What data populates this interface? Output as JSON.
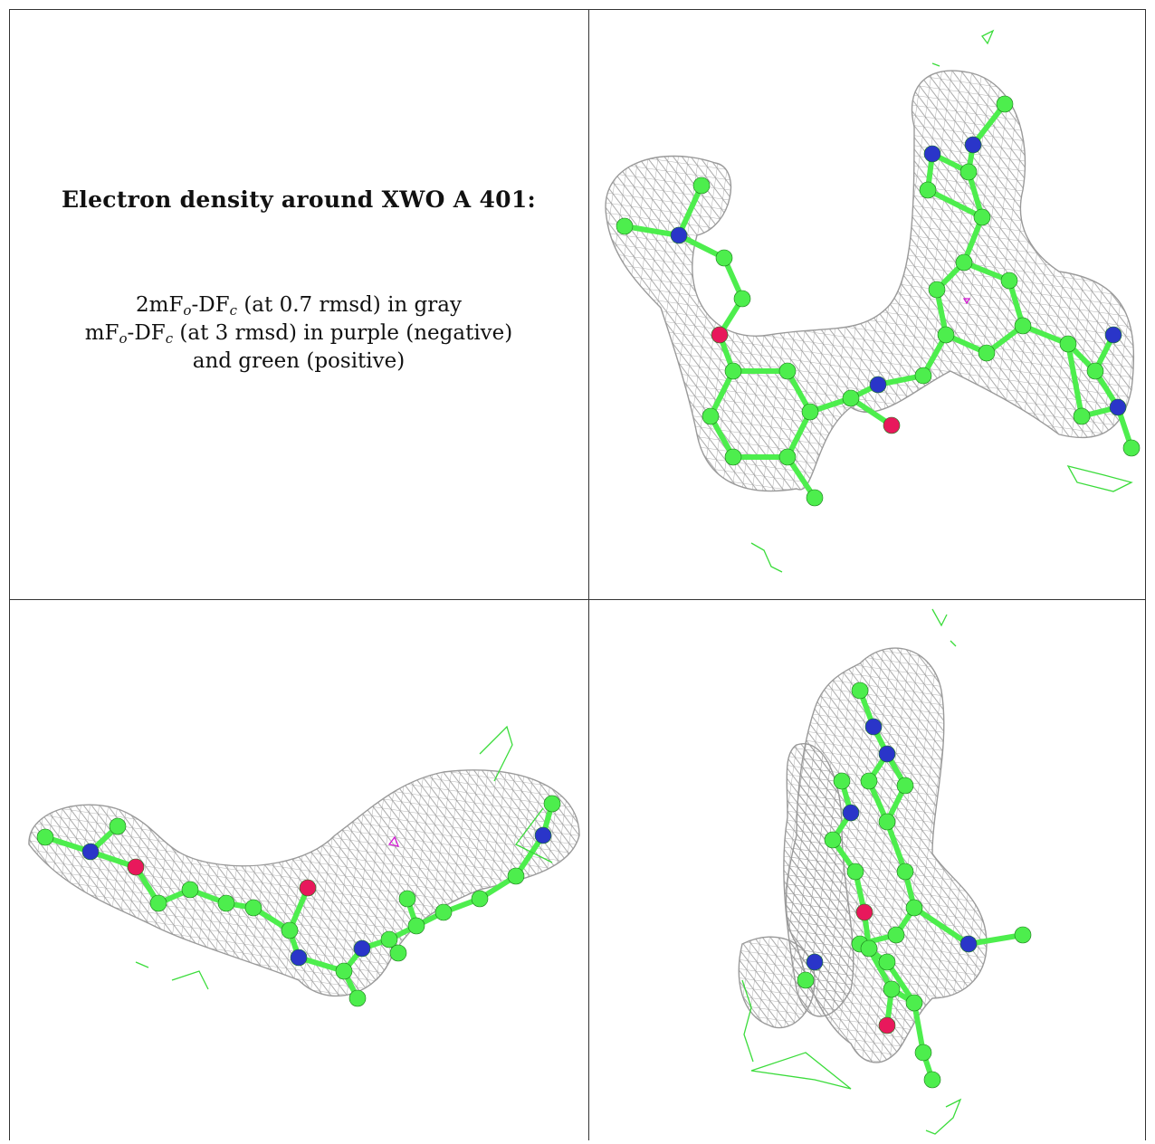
{
  "caption": {
    "title": "Electron density around XWO A 401:",
    "line1": {
      "a": "2mF",
      "a_sub": "o",
      "b": "-DF",
      "b_sub": "c",
      "rest": " (at 0.7 rmsd) in gray"
    },
    "line2": {
      "a": "mF",
      "a_sub": "o",
      "b": "-DF",
      "b_sub": "c",
      "rest": " (at 3 rmsd) in purple (negative)"
    },
    "line3": {
      "rest": "and green (positive)"
    }
  },
  "colors": {
    "mesh_gray": "#9a9a9a",
    "carbon_green": "#4dee4d",
    "nitrogen_blue": "#2a35c9",
    "oxygen_red": "#e8185c",
    "positive_green": "#3bdc3b",
    "negative_purple": "#d41ad4",
    "border": "#333333"
  },
  "panels": [
    {
      "view": "top-right",
      "content": "ligand-density-view-1"
    },
    {
      "view": "bottom-left",
      "content": "ligand-density-view-2"
    },
    {
      "view": "bottom-right",
      "content": "ligand-density-view-3"
    }
  ]
}
